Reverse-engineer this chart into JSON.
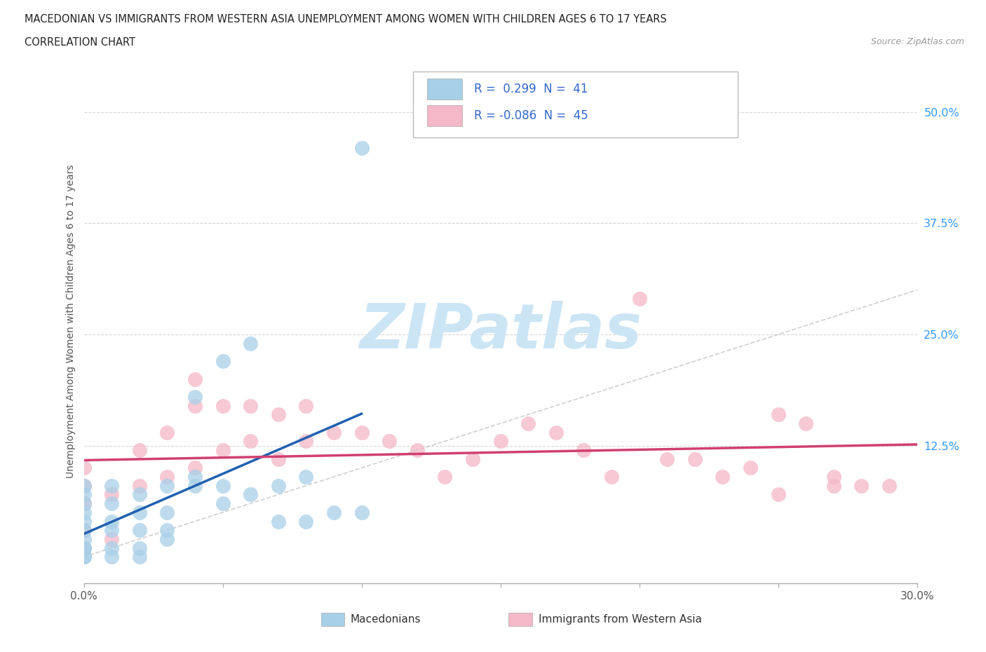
{
  "title_line1": "MACEDONIAN VS IMMIGRANTS FROM WESTERN ASIA UNEMPLOYMENT AMONG WOMEN WITH CHILDREN AGES 6 TO 17 YEARS",
  "title_line2": "CORRELATION CHART",
  "source": "Source: ZipAtlas.com",
  "ylabel": "Unemployment Among Women with Children Ages 6 to 17 years",
  "xlim": [
    0.0,
    0.3
  ],
  "ylim": [
    -0.03,
    0.56
  ],
  "xticks": [
    0.0,
    0.05,
    0.1,
    0.15,
    0.2,
    0.25,
    0.3
  ],
  "xticklabels": [
    "0.0%",
    "",
    "",
    "",
    "",
    "",
    "30.0%"
  ],
  "yticks_right": [
    0.125,
    0.25,
    0.375,
    0.5
  ],
  "ytick_right_labels": [
    "12.5%",
    "25.0%",
    "37.5%",
    "50.0%"
  ],
  "blue_color": "#a8cfe8",
  "pink_color": "#f4b8c8",
  "blue_line_color": "#2060b0",
  "pink_line_color": "#d04070",
  "grid_color": "#cccccc",
  "watermark_color": "#cce5f5",
  "mac_x": [
    0.0,
    0.0,
    0.0,
    0.0,
    0.0,
    0.0,
    0.0,
    0.0,
    0.0,
    0.0,
    0.0,
    0.01,
    0.01,
    0.01,
    0.01,
    0.01,
    0.01,
    0.02,
    0.02,
    0.02,
    0.02,
    0.02,
    0.03,
    0.03,
    0.03,
    0.03,
    0.04,
    0.04,
    0.04,
    0.05,
    0.05,
    0.05,
    0.06,
    0.06,
    0.07,
    0.07,
    0.08,
    0.08,
    0.09,
    0.1,
    0.1
  ],
  "mac_y": [
    0.0,
    0.0,
    0.01,
    0.01,
    0.02,
    0.03,
    0.04,
    0.05,
    0.06,
    0.07,
    0.08,
    0.0,
    0.01,
    0.03,
    0.04,
    0.06,
    0.08,
    0.0,
    0.01,
    0.03,
    0.05,
    0.07,
    0.02,
    0.03,
    0.05,
    0.08,
    0.08,
    0.09,
    0.18,
    0.06,
    0.08,
    0.22,
    0.07,
    0.24,
    0.04,
    0.08,
    0.04,
    0.09,
    0.05,
    0.05,
    0.46
  ],
  "imm_x": [
    0.0,
    0.0,
    0.0,
    0.0,
    0.0,
    0.01,
    0.01,
    0.02,
    0.02,
    0.03,
    0.03,
    0.04,
    0.04,
    0.04,
    0.05,
    0.05,
    0.06,
    0.06,
    0.07,
    0.07,
    0.08,
    0.08,
    0.09,
    0.1,
    0.11,
    0.12,
    0.13,
    0.14,
    0.15,
    0.16,
    0.17,
    0.18,
    0.19,
    0.2,
    0.21,
    0.22,
    0.23,
    0.24,
    0.25,
    0.25,
    0.26,
    0.27,
    0.27,
    0.28,
    0.29
  ],
  "imm_y": [
    0.01,
    0.03,
    0.06,
    0.08,
    0.1,
    0.02,
    0.07,
    0.08,
    0.12,
    0.09,
    0.14,
    0.1,
    0.17,
    0.2,
    0.12,
    0.17,
    0.13,
    0.17,
    0.11,
    0.16,
    0.13,
    0.17,
    0.14,
    0.14,
    0.13,
    0.12,
    0.09,
    0.11,
    0.13,
    0.15,
    0.14,
    0.12,
    0.09,
    0.29,
    0.11,
    0.11,
    0.09,
    0.1,
    0.07,
    0.16,
    0.15,
    0.08,
    0.09,
    0.08,
    0.08
  ]
}
